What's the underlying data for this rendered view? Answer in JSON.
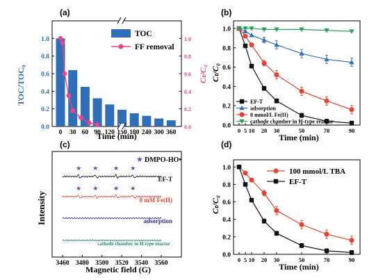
{
  "colors": {
    "blue": "#2f6fba",
    "pink": "#e8468b",
    "black": "#111111",
    "red": "#e8402c",
    "green": "#22a35a",
    "purple": "#2e2c9a",
    "lavender": "#6b41b0",
    "teal": "#1f8a5c"
  },
  "chart_data": [
    {
      "panel": "(a)",
      "type": "bar",
      "categories": [
        "0",
        "30",
        "60",
        "90",
        "120",
        "150",
        "180",
        "240",
        "300",
        "360"
      ],
      "series": [
        {
          "name": "TOC",
          "type": "bar",
          "axis": "left",
          "values": [
            1.0,
            0.64,
            0.45,
            0.32,
            0.25,
            0.19,
            0.15,
            0.12,
            0.09,
            0.07
          ]
        },
        {
          "name": "FF removal",
          "type": "line",
          "axis": "right",
          "x": [
            0,
            5,
            10,
            20,
            30,
            50,
            70,
            90
          ],
          "values": [
            1.0,
            0.95,
            0.6,
            0.35,
            0.18,
            0.1,
            0.04,
            0.02
          ]
        }
      ],
      "xlabel": "Time (min)",
      "ylabel": "TOC/TOC₀",
      "y2label": "Cₜ/C₀",
      "ylim": [
        0,
        1.2
      ],
      "y2lim": [
        0,
        1.2
      ],
      "yticks": [
        "0.0",
        "0.2",
        "0.4",
        "0.6",
        "0.8",
        "1.0"
      ],
      "y2ticks": [
        "0.0",
        "0.2",
        "0.4",
        "0.6",
        "0.8",
        "1.0"
      ],
      "xaxis_break": true,
      "legend": "top-right"
    },
    {
      "panel": "(b)",
      "type": "line",
      "x": [
        0,
        5,
        10,
        20,
        30,
        50,
        70,
        90
      ],
      "xticks": [
        "0",
        "5",
        "10",
        "20",
        "30",
        "50",
        "70",
        "90"
      ],
      "series": [
        {
          "name": "EF-T",
          "color": "black",
          "marker": "square",
          "values": [
            1.0,
            0.82,
            0.61,
            0.38,
            0.25,
            0.1,
            0.04,
            0.02
          ]
        },
        {
          "name": "adsorption",
          "color": "blue",
          "marker": "triangle",
          "values": [
            1.0,
            0.97,
            0.93,
            0.88,
            0.83,
            0.74,
            0.68,
            0.65
          ]
        },
        {
          "name": "0 mmol/L Fe(II)",
          "color": "red",
          "marker": "circle",
          "values": [
            1.0,
            0.92,
            0.83,
            0.64,
            0.52,
            0.35,
            0.25,
            0.16
          ]
        },
        {
          "name": "cathode chamber in H-type reactor",
          "color": "green",
          "marker": "triangle-down",
          "values": [
            1.0,
            1.0,
            1.0,
            0.99,
            0.99,
            0.99,
            0.98,
            0.97
          ]
        }
      ],
      "xlabel": "Time (min)",
      "ylabel": "Cₜ/C₀",
      "ylim": [
        0,
        1.05
      ],
      "yticks": [
        "0.0",
        "0.2",
        "0.4",
        "0.6",
        "0.8",
        "1.0"
      ],
      "legend": "bottom-left"
    },
    {
      "panel": "(c)",
      "type": "line",
      "title_marker": "★",
      "annotation": "DMPO-HO•",
      "traces": [
        {
          "name": "EF-T",
          "color": "black",
          "stars_at": [
            3477,
            3494,
            3515,
            3532
          ]
        },
        {
          "name": "0 mM Fe(II)",
          "color": "red",
          "stars_at": [
            3477,
            3494,
            3515,
            3532
          ]
        },
        {
          "name": "adsorption",
          "color": "purple",
          "stars_at": []
        },
        {
          "name": "cathode chamber in H-type reactor",
          "color": "teal",
          "stars_at": []
        }
      ],
      "xlabel": "Magnetic field (G)",
      "ylabel": "Intensity",
      "xlim": [
        3460,
        3560
      ],
      "xticks": [
        "3460",
        "3480",
        "3500",
        "3520",
        "3540",
        "3560"
      ]
    },
    {
      "panel": "(d)",
      "type": "line",
      "x": [
        0,
        5,
        10,
        20,
        30,
        50,
        70,
        90
      ],
      "xticks": [
        "0",
        "5",
        "10",
        "20",
        "30",
        "50",
        "70",
        "90"
      ],
      "series": [
        {
          "name": "100 mmol/L TBA",
          "color": "red",
          "marker": "circle",
          "values": [
            1.0,
            0.93,
            0.85,
            0.7,
            0.5,
            0.34,
            0.23,
            0.16
          ]
        },
        {
          "name": "EF-T",
          "color": "black",
          "marker": "square",
          "values": [
            1.0,
            0.8,
            0.62,
            0.38,
            0.24,
            0.1,
            0.04,
            0.02
          ]
        }
      ],
      "xlabel": "Time (min)",
      "ylabel": "Cₜ/C₀",
      "ylim": [
        0,
        1.05
      ],
      "yticks": [
        "0.0",
        "0.2",
        "0.4",
        "0.6",
        "0.8",
        "1.0"
      ],
      "legend": "top-right"
    }
  ]
}
